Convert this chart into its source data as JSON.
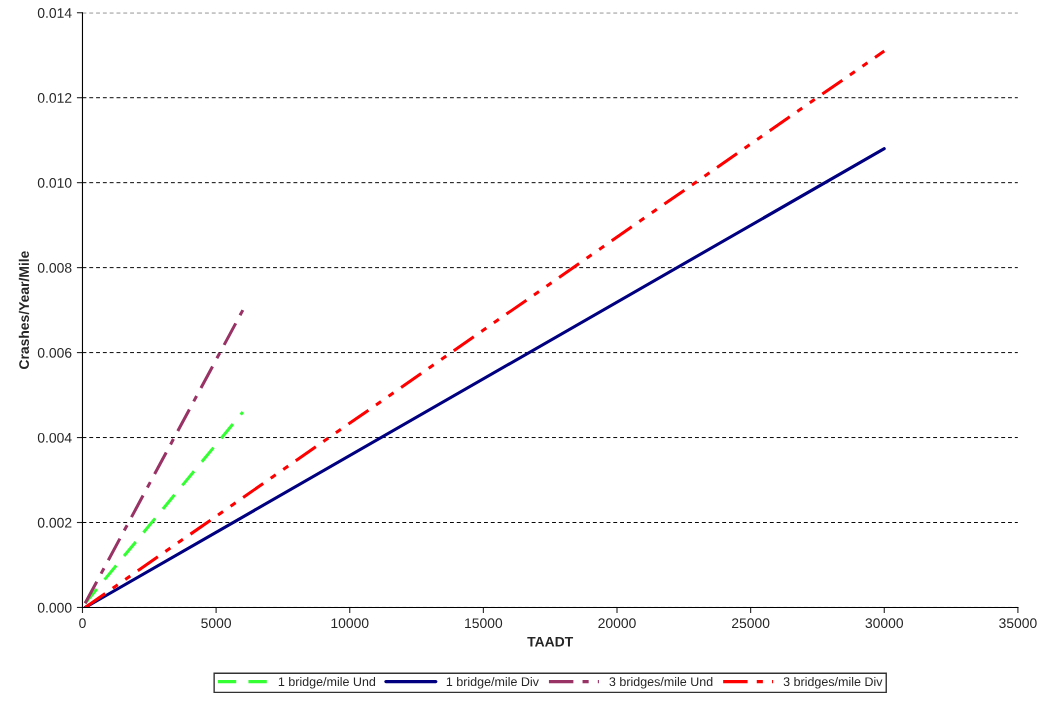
{
  "chart_data": {
    "type": "line",
    "xlabel": "TAADT",
    "ylabel": "Crashes/Year/Mile",
    "series": [
      {
        "name": "1 bridge/mile Und",
        "color": "#33ff33",
        "line_style": "dashed",
        "x": [
          100,
          6000
        ],
        "values": [
          0.0001,
          0.0046
        ]
      },
      {
        "name": "1 bridge/mile Div",
        "color": "#000080",
        "line_style": "solid",
        "x": [
          100,
          30000
        ],
        "values": [
          0.0,
          0.0108
        ]
      },
      {
        "name": "3 bridges/mile Und",
        "color": "#993366",
        "line_style": "dashdot",
        "x": [
          100,
          6000
        ],
        "values": [
          0.0001,
          0.007
        ]
      },
      {
        "name": "3 bridges/mile Div",
        "color": "#ff0000",
        "line_style": "dashdotdot",
        "x": [
          100,
          30000
        ],
        "values": [
          0.0,
          0.0131
        ]
      }
    ],
    "xlim": [
      0,
      35000
    ],
    "xticks": [
      0,
      5000,
      10000,
      15000,
      20000,
      25000,
      30000,
      35000
    ],
    "ylim": [
      0,
      0.014
    ],
    "yticks": [
      {
        "value": 0,
        "label": "0.000"
      },
      {
        "value": 0.002,
        "label": "0.002"
      },
      {
        "value": 0.004,
        "label": "0.004"
      },
      {
        "value": 0.006,
        "label": "0.006"
      },
      {
        "value": 0.008,
        "label": "0.008"
      },
      {
        "value": 0.01,
        "label": "0.010"
      },
      {
        "value": 0.012,
        "label": "0.012"
      },
      {
        "value": 0.014,
        "label": "0.014"
      }
    ],
    "grid": "y",
    "legend": "bottom",
    "marker": "none"
  }
}
